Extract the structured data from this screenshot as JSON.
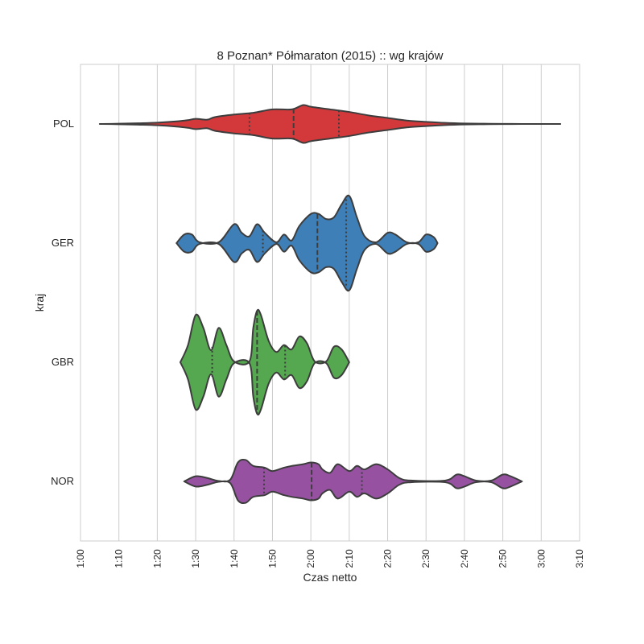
{
  "chart_data": {
    "type": "violin",
    "title": "8 Poznan* Półmaraton (2015) :: wg krajów",
    "xlabel": "Czas netto",
    "ylabel": "kraj",
    "xlim": [
      60,
      190
    ],
    "x_ticks": [
      {
        "value": 60,
        "label": "1:00"
      },
      {
        "value": 70,
        "label": "1:10"
      },
      {
        "value": 80,
        "label": "1:20"
      },
      {
        "value": 90,
        "label": "1:30"
      },
      {
        "value": 100,
        "label": "1:40"
      },
      {
        "value": 110,
        "label": "1:50"
      },
      {
        "value": 120,
        "label": "2:00"
      },
      {
        "value": 130,
        "label": "2:10"
      },
      {
        "value": 140,
        "label": "2:20"
      },
      {
        "value": 150,
        "label": "2:30"
      },
      {
        "value": 160,
        "label": "2:40"
      },
      {
        "value": 170,
        "label": "2:50"
      },
      {
        "value": 180,
        "label": "3:00"
      },
      {
        "value": 190,
        "label": "3:10"
      }
    ],
    "grid": "vertical",
    "series": [
      {
        "name": "POL",
        "color": "#d3393b",
        "quartiles": [
          104,
          115.5,
          127.3
        ],
        "profile": [
          [
            65,
            0
          ],
          [
            70,
            0.3
          ],
          [
            75,
            0.8
          ],
          [
            80,
            1.5
          ],
          [
            85,
            3
          ],
          [
            88,
            4.5
          ],
          [
            90,
            6
          ],
          [
            93,
            5
          ],
          [
            95,
            8
          ],
          [
            100,
            11
          ],
          [
            105,
            13
          ],
          [
            110,
            17
          ],
          [
            115,
            17
          ],
          [
            118,
            22
          ],
          [
            120,
            20
          ],
          [
            125,
            17
          ],
          [
            130,
            14
          ],
          [
            135,
            10
          ],
          [
            140,
            7
          ],
          [
            145,
            4
          ],
          [
            150,
            2.5
          ],
          [
            155,
            1.3
          ],
          [
            160,
            0.6
          ],
          [
            165,
            0.3
          ],
          [
            170,
            0.1
          ],
          [
            180,
            0
          ],
          [
            185,
            0
          ]
        ]
      },
      {
        "name": "GER",
        "color": "#3f7fb7",
        "quartiles": [
          107.5,
          121.7,
          129.2
        ],
        "profile": [
          [
            85,
            0
          ],
          [
            87,
            10
          ],
          [
            89,
            10
          ],
          [
            91,
            1
          ],
          [
            96,
            1
          ],
          [
            100,
            22
          ],
          [
            102,
            12
          ],
          [
            104,
            8
          ],
          [
            106,
            22
          ],
          [
            108,
            12
          ],
          [
            111,
            1
          ],
          [
            113,
            10
          ],
          [
            115,
            3
          ],
          [
            117,
            20
          ],
          [
            120,
            34
          ],
          [
            122,
            34
          ],
          [
            124,
            28
          ],
          [
            126,
            30
          ],
          [
            128,
            45
          ],
          [
            130,
            55
          ],
          [
            132,
            30
          ],
          [
            134,
            8
          ],
          [
            137,
            1
          ],
          [
            140,
            12
          ],
          [
            142,
            10
          ],
          [
            145,
            1
          ],
          [
            148,
            1
          ],
          [
            150,
            10
          ],
          [
            152,
            7
          ],
          [
            153,
            0
          ]
        ]
      },
      {
        "name": "GBR",
        "color": "#55a84f",
        "quartiles": [
          94.3,
          106,
          113.3
        ],
        "profile": [
          [
            86,
            0
          ],
          [
            88,
            20
          ],
          [
            90,
            55
          ],
          [
            92,
            40
          ],
          [
            94,
            14
          ],
          [
            96,
            40
          ],
          [
            98,
            20
          ],
          [
            100,
            1
          ],
          [
            104,
            1
          ],
          [
            105,
            40
          ],
          [
            106,
            60
          ],
          [
            107,
            55
          ],
          [
            109,
            25
          ],
          [
            111,
            12
          ],
          [
            113,
            20
          ],
          [
            115,
            15
          ],
          [
            117,
            30
          ],
          [
            119,
            22
          ],
          [
            121,
            1
          ],
          [
            124,
            1
          ],
          [
            126,
            18
          ],
          [
            128,
            15
          ],
          [
            130,
            0
          ]
        ]
      },
      {
        "name": "NOR",
        "color": "#9652a1",
        "quartiles": [
          107.8,
          120.2,
          133.3
        ],
        "profile": [
          [
            87,
            0
          ],
          [
            90,
            6
          ],
          [
            93,
            4
          ],
          [
            96,
            0.5
          ],
          [
            99,
            2
          ],
          [
            101,
            22
          ],
          [
            103,
            25
          ],
          [
            105,
            18
          ],
          [
            108,
            16
          ],
          [
            110,
            12
          ],
          [
            113,
            16
          ],
          [
            115,
            18
          ],
          [
            118,
            20
          ],
          [
            120,
            22
          ],
          [
            122,
            20
          ],
          [
            123,
            14
          ],
          [
            125,
            10
          ],
          [
            127,
            20
          ],
          [
            130,
            12
          ],
          [
            132,
            18
          ],
          [
            134,
            14
          ],
          [
            137,
            20
          ],
          [
            140,
            14
          ],
          [
            143,
            4
          ],
          [
            146,
            1
          ],
          [
            155,
            1
          ],
          [
            158,
            8
          ],
          [
            160,
            6
          ],
          [
            163,
            1
          ],
          [
            167,
            1
          ],
          [
            170,
            8
          ],
          [
            172,
            6
          ],
          [
            175,
            0
          ]
        ]
      }
    ]
  }
}
